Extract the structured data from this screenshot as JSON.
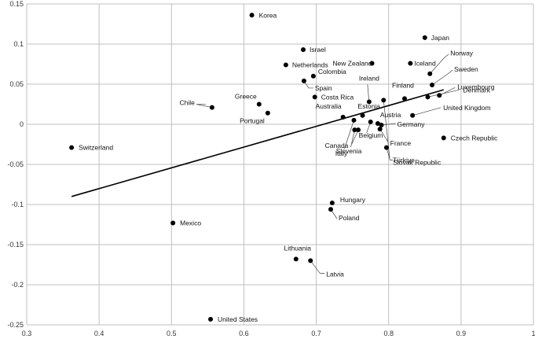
{
  "chart_data": {
    "type": "scatter",
    "xlim": [
      0.3,
      1.0
    ],
    "ylim": [
      -0.25,
      0.15
    ],
    "x_ticks": [
      {
        "v": 0.3,
        "label": "0.3"
      },
      {
        "v": 0.4,
        "label": "0.4"
      },
      {
        "v": 0.5,
        "label": "0.5"
      },
      {
        "v": 0.6,
        "label": "0.6"
      },
      {
        "v": 0.7,
        "label": "0.7"
      },
      {
        "v": 0.8,
        "label": "0.8"
      },
      {
        "v": 0.9,
        "label": "0.9"
      },
      {
        "v": 1.0,
        "label": "1"
      }
    ],
    "y_ticks": [
      {
        "v": 0.15,
        "label": "0.15"
      },
      {
        "v": 0.1,
        "label": "0.1"
      },
      {
        "v": 0.05,
        "label": "0.05"
      },
      {
        "v": 0,
        "label": "0"
      },
      {
        "v": -0.05,
        "label": "-0.05"
      },
      {
        "v": -0.1,
        "label": "-0.1"
      },
      {
        "v": -0.15,
        "label": "-0.15"
      },
      {
        "v": -0.2,
        "label": "-0.2"
      },
      {
        "v": -0.25,
        "label": "-0.25"
      }
    ],
    "grid": true,
    "points": [
      {
        "label": "Switzerland",
        "x": 0.362,
        "y": -0.029
      },
      {
        "label": "Mexico",
        "x": 0.502,
        "y": -0.123
      },
      {
        "label": "United States",
        "x": 0.554,
        "y": -0.243
      },
      {
        "label": "Chile",
        "x": 0.556,
        "y": 0.021
      },
      {
        "label": "Korea",
        "x": 0.611,
        "y": 0.136
      },
      {
        "label": "Greece",
        "x": 0.621,
        "y": 0.025
      },
      {
        "label": "Portugal",
        "x": 0.633,
        "y": 0.014
      },
      {
        "label": "Netherlands",
        "x": 0.658,
        "y": 0.074
      },
      {
        "label": "Israel",
        "x": 0.682,
        "y": 0.093
      },
      {
        "label": "Lithuania",
        "x": 0.672,
        "y": -0.168
      },
      {
        "label": "Latvia",
        "x": 0.692,
        "y": -0.17
      },
      {
        "label": "Colombia",
        "x": 0.696,
        "y": 0.06
      },
      {
        "label": "Spain",
        "x": 0.683,
        "y": 0.054
      },
      {
        "label": "Costa Rica",
        "x": 0.698,
        "y": 0.034
      },
      {
        "label": "Australia",
        "x": 0.737,
        "y": 0.009
      },
      {
        "label": "Canada",
        "x": 0.753,
        "y": -0.007
      },
      {
        "label": "Slovenia",
        "x": 0.758,
        "y": -0.007
      },
      {
        "label": "Italy",
        "x": 0.752,
        "y": 0.005
      },
      {
        "label": "Hungary",
        "x": 0.722,
        "y": -0.098
      },
      {
        "label": "Poland",
        "x": 0.72,
        "y": -0.106
      },
      {
        "label": "Estonia",
        "x": 0.764,
        "y": 0.011
      },
      {
        "label": "Ireland",
        "x": 0.773,
        "y": 0.028
      },
      {
        "label": "New Zealand",
        "x": 0.777,
        "y": 0.076
      },
      {
        "label": "Belgium",
        "x": 0.775,
        "y": 0.003
      },
      {
        "label": "Austria",
        "x": 0.785,
        "y": 0.001
      },
      {
        "label": "Germany",
        "x": 0.79,
        "y": -0.001
      },
      {
        "label": "France",
        "x": 0.788,
        "y": -0.006
      },
      {
        "label": "Türkiye",
        "x": 0.797,
        "y": -0.029
      },
      {
        "label": "Slovak Republic",
        "x": 0.793,
        "y": 0.03
      },
      {
        "label": "Iceland",
        "x": 0.83,
        "y": 0.076
      },
      {
        "label": "Finland",
        "x": 0.822,
        "y": 0.032
      },
      {
        "label": "Japan",
        "x": 0.85,
        "y": 0.108
      },
      {
        "label": "Norway",
        "x": 0.857,
        "y": 0.063
      },
      {
        "label": "Sweden",
        "x": 0.86,
        "y": 0.049
      },
      {
        "label": "Denmark",
        "x": 0.854,
        "y": 0.034
      },
      {
        "label": "Luxembourg",
        "x": 0.87,
        "y": 0.036
      },
      {
        "label": "United Kingdom",
        "x": 0.833,
        "y": 0.011
      },
      {
        "label": "Czech Republic",
        "x": 0.876,
        "y": -0.017
      }
    ],
    "trendline": {
      "x1": 0.362,
      "y1": -0.09,
      "x2": 0.876,
      "y2": 0.043
    }
  }
}
